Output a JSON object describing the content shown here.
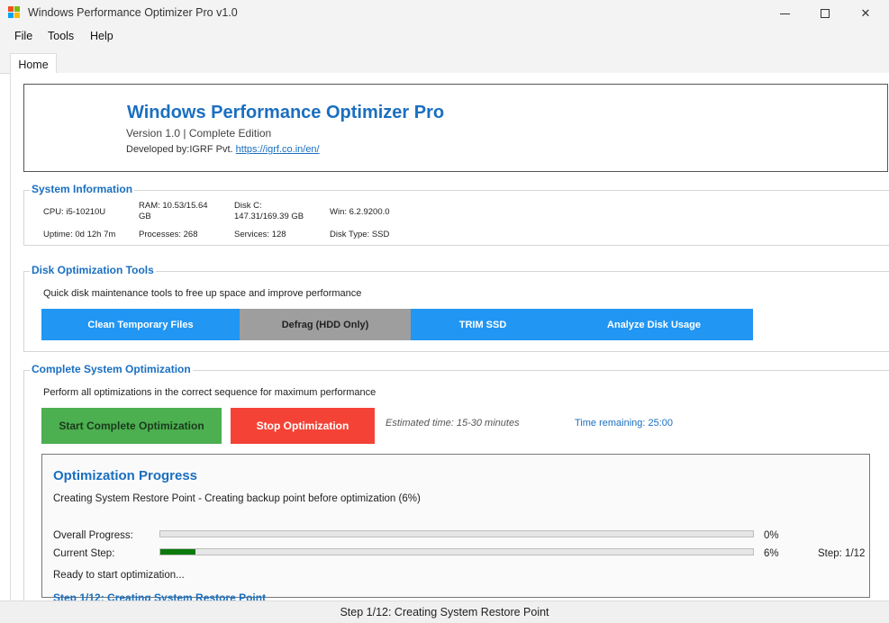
{
  "window": {
    "title": "Windows Performance Optimizer Pro v1.0",
    "icon": "app-icon"
  },
  "menu": {
    "file": "File",
    "tools": "Tools",
    "help": "Help"
  },
  "tabs": {
    "home": "Home"
  },
  "header": {
    "title": "Windows Performance Optimizer Pro",
    "version": "Version 1.0 | Complete Edition",
    "developer_prefix": "Developed by:IGRF Pvt.",
    "developer_link": "https://igrf.co.in/en/"
  },
  "system_info": {
    "title": "System Information",
    "cpu": "CPU: i5-10210U",
    "ram_line1": "RAM: 10.53/15.64",
    "ram_line2": "GB",
    "disk_line1": "Disk C:",
    "disk_line2": "147.31/169.39 GB",
    "win": "Win: 6.2.9200.0",
    "uptime": "Uptime: 0d 12h 7m",
    "processes": "Processes: 268",
    "services": "Services: 128",
    "disk_type": "Disk Type: SSD"
  },
  "disk_tools": {
    "title": "Disk Optimization Tools",
    "description": "Quick disk maintenance tools to free up space and improve performance",
    "buttons": {
      "clean": "Clean Temporary Files",
      "defrag": "Defrag (HDD Only)",
      "trim": "TRIM SSD",
      "analyze": "Analyze Disk Usage"
    }
  },
  "complete_opt": {
    "title": "Complete System Optimization",
    "description": "Perform all optimizations in the correct sequence for maximum performance",
    "start_label": "Start Complete Optimization",
    "stop_label": "Stop Optimization",
    "estimated": "Estimated time: 15-30 minutes",
    "remaining": "Time remaining: 25:00"
  },
  "progress": {
    "title": "Optimization Progress",
    "status": "Creating System Restore Point - Creating backup point before optimization (6%)",
    "overall_label": "Overall Progress:",
    "overall_pct": "0%",
    "overall_value": 0,
    "current_label": "Current Step:",
    "current_pct": "6%",
    "current_value": 0.06,
    "step_indicator": "Step: 1/12",
    "ready_text": "Ready to start optimization...",
    "step_title": "Step 1/12: Creating System Restore Point"
  },
  "statusbar": {
    "text": "Step 1/12: Creating System Restore Point"
  },
  "colors": {
    "accent": "#1a6fc0",
    "button_blue": "#2196f3",
    "button_gray": "#9e9e9e",
    "button_green": "#4caf50",
    "button_red": "#f44336",
    "progress_green": "#0b7a0b"
  }
}
